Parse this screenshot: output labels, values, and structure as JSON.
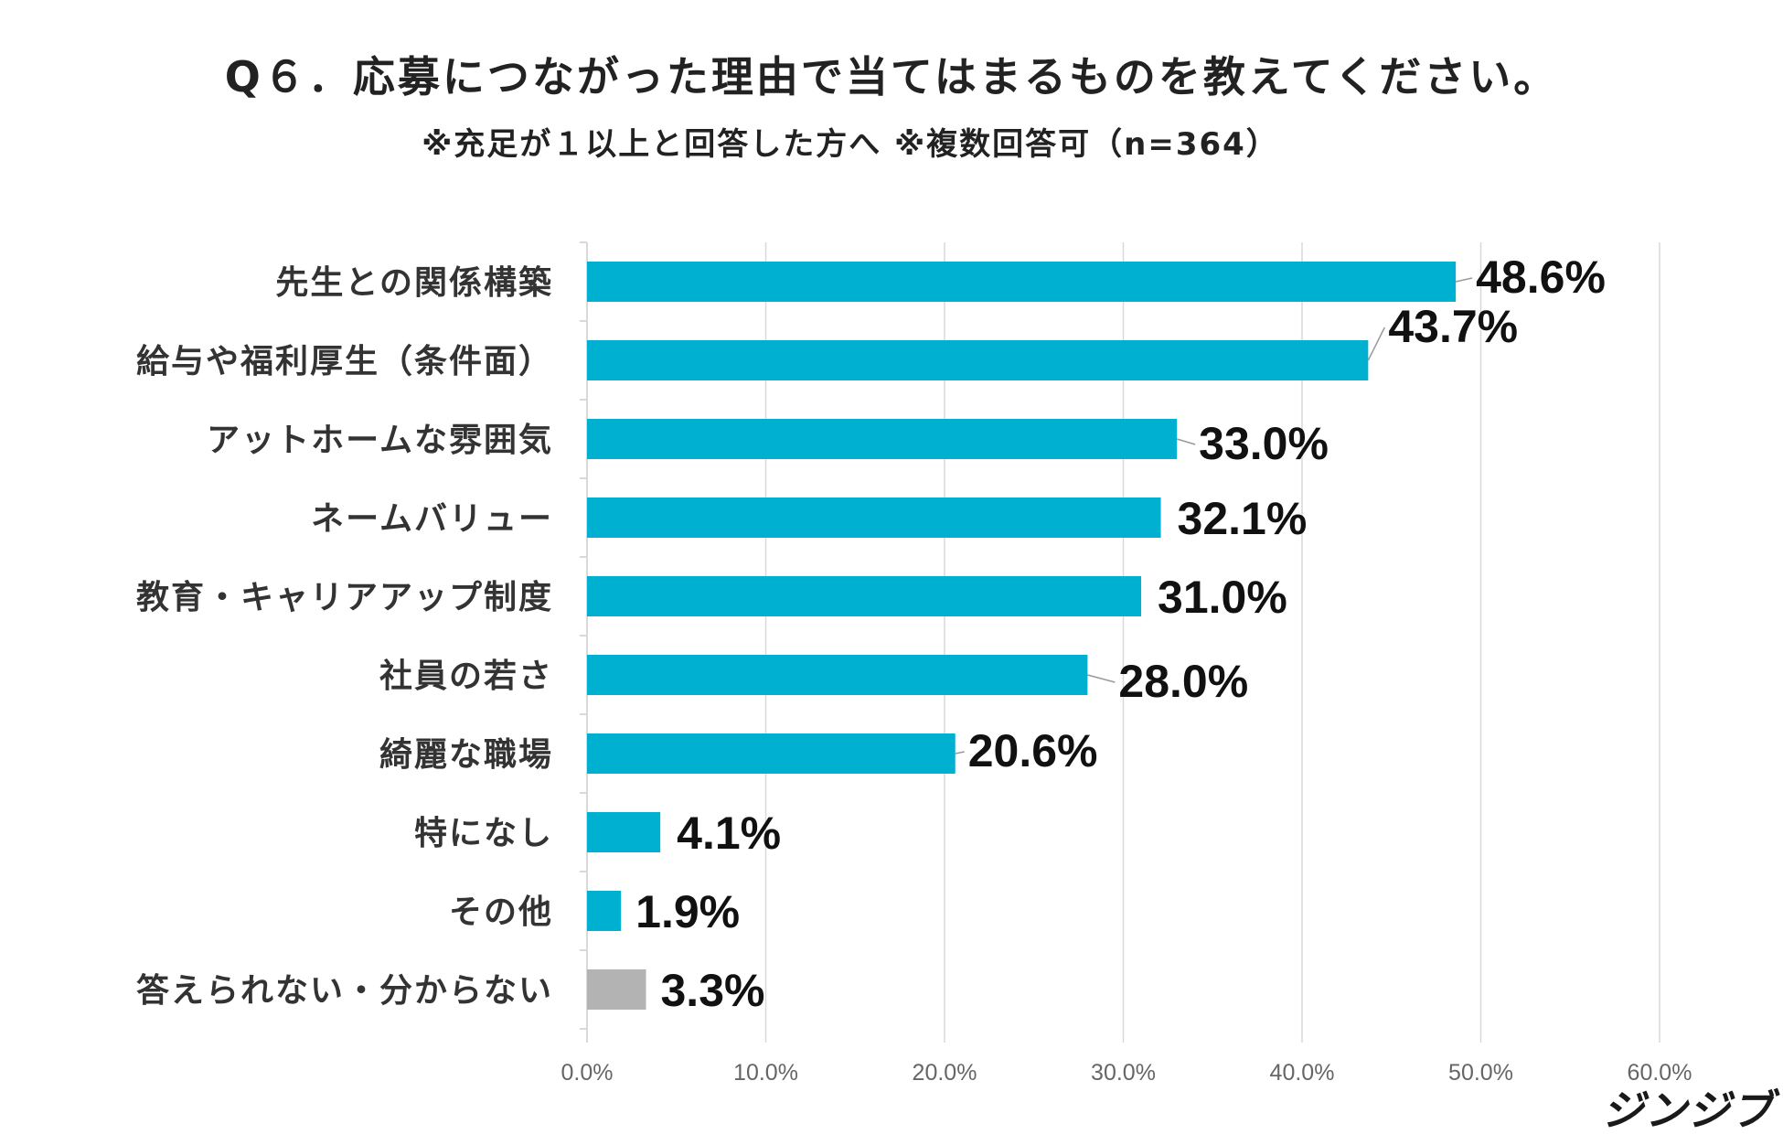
{
  "chart_data": {
    "type": "bar",
    "orientation": "horizontal",
    "title": "Q６．応募につながった理由で当てはまるものを教えてください。",
    "subtitle": "※充足が１以上と回答した方へ ※複数回答可（n=364）",
    "categories": [
      "先生との関係構築",
      "給与や福利厚生（条件面）",
      "アットホームな雰囲気",
      "ネームバリュー",
      "教育・キャリアアップ制度",
      "社員の若さ",
      "綺麗な職場",
      "特になし",
      "その他",
      "答えられない・分からない"
    ],
    "values": [
      48.6,
      43.7,
      33.0,
      32.1,
      31.0,
      28.0,
      20.6,
      4.1,
      1.9,
      3.3
    ],
    "value_labels": [
      "48.6%",
      "43.7%",
      "33.0%",
      "32.1%",
      "31.0%",
      "28.0%",
      "20.6%",
      "4.1%",
      "1.9%",
      "3.3%"
    ],
    "bar_colors": [
      "#00b0d0",
      "#00b0d0",
      "#00b0d0",
      "#00b0d0",
      "#00b0d0",
      "#00b0d0",
      "#00b0d0",
      "#00b0d0",
      "#00b0d0",
      "#b3b3b3"
    ],
    "xlim": [
      0,
      60
    ],
    "x_ticks": [
      0,
      10,
      20,
      30,
      40,
      50,
      60
    ],
    "x_tick_labels": [
      "0.0%",
      "10.0%",
      "20.0%",
      "30.0%",
      "40.0%",
      "50.0%",
      "60.0%"
    ],
    "grid": true,
    "xlabel": "",
    "ylabel": ""
  },
  "brand": {
    "logo_text": "ジンジブ"
  },
  "colors": {
    "accent": "#00b0d0",
    "neutral_bar": "#b3b3b3",
    "gridline": "#d9d9d9"
  }
}
